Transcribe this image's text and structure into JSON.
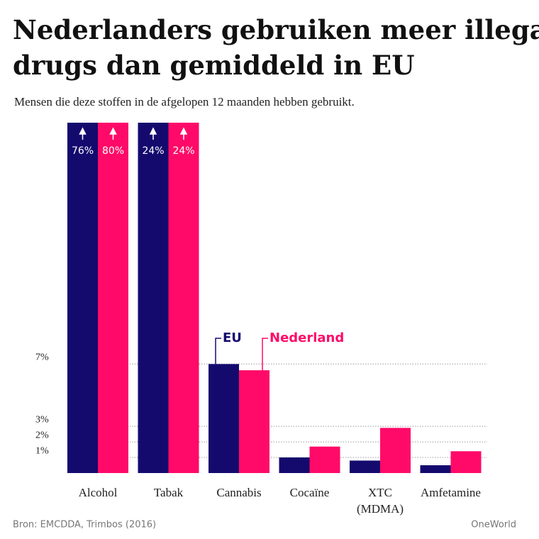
{
  "chart_data": {
    "type": "bar",
    "title": "Nederlanders gebruiken meer illegale drugs dan gemiddeld in EU",
    "subtitle": "Mensen die deze stoffen in de afgelopen 12 maanden hebben gebruikt.",
    "source": "Bron: EMCDDA, Trimbos (2016)",
    "credit": "OneWorld",
    "categories": [
      "Alcohol",
      "Tabak",
      "Cannabis",
      "Cocaïne",
      "XTC (MDMA)",
      "Amfetamine"
    ],
    "series": [
      {
        "name": "EU",
        "color": "#140a6e",
        "values": [
          76,
          24,
          7.0,
          1.0,
          0.8,
          0.5
        ],
        "value_labels": [
          "76%",
          "24%",
          null,
          null,
          null,
          null
        ]
      },
      {
        "name": "Nederland",
        "color": "#ff0a68",
        "values": [
          80,
          24,
          6.6,
          1.7,
          2.9,
          1.4
        ],
        "value_labels": [
          "80%",
          "24%",
          null,
          null,
          null,
          null
        ]
      }
    ],
    "ylim": [
      0,
      22.5
    ],
    "yticks": [
      {
        "value": 1,
        "label": "1%"
      },
      {
        "value": 2,
        "label": "2%"
      },
      {
        "value": 3,
        "label": "3%"
      },
      {
        "value": 7,
        "label": "7%"
      }
    ],
    "grid": true
  }
}
